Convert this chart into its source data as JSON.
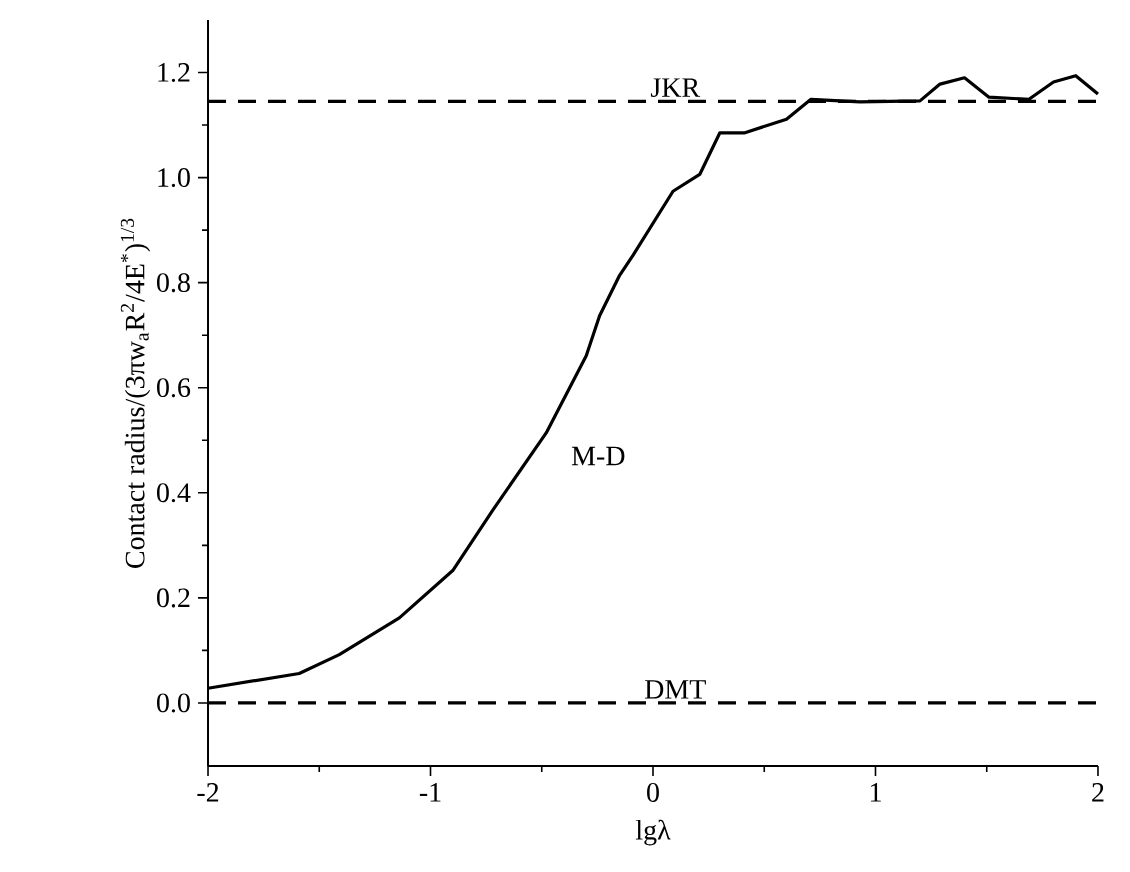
{
  "chart_data": {
    "type": "line",
    "xlabel": "lgλ",
    "ylabel": "Contact radius/(3πw$_{a}$R$^{2}$/4E$^{*}$)$^{1/3}$",
    "xlim": [
      -2,
      2
    ],
    "xticks": [
      -2,
      -1,
      0,
      1,
      2
    ],
    "ylim": [
      -0.12,
      1.3
    ],
    "yticks": [
      {
        "value": 0,
        "label": "0.0"
      },
      0.2,
      0.4,
      0.6,
      0.8,
      {
        "value": 1,
        "label": "1.0"
      },
      1.2
    ],
    "marker": "none",
    "line_style": "solid",
    "series": [
      {
        "name": "M-D",
        "color": "#000000",
        "x": [
          -2,
          -1.59,
          -1.41,
          -1.14,
          -0.9,
          -0.72,
          -0.48,
          -0.3,
          -0.24,
          -0.15,
          -0.09,
          0.09,
          0.21,
          0.3,
          0.41,
          0.6,
          0.71,
          0.93,
          1.2,
          1.29,
          1.4,
          1.51,
          1.69,
          1.8,
          1.9,
          2.0
        ],
        "values": [
          0.028,
          0.056,
          0.092,
          0.162,
          0.252,
          0.367,
          0.514,
          0.661,
          0.737,
          0.814,
          0.852,
          0.974,
          1.006,
          1.085,
          1.085,
          1.111,
          1.149,
          1.144,
          1.146,
          1.178,
          1.19,
          1.153,
          1.149,
          1.182,
          1.194,
          1.159
        ]
      }
    ],
    "ref_lines": [
      {
        "axis": "y",
        "value": 1.145,
        "label": "JKR",
        "color": "#000000",
        "line_style": "dashed"
      },
      {
        "axis": "y",
        "value": 0,
        "label": "DMT",
        "color": "#000000",
        "line_style": "dashed"
      }
    ]
  }
}
